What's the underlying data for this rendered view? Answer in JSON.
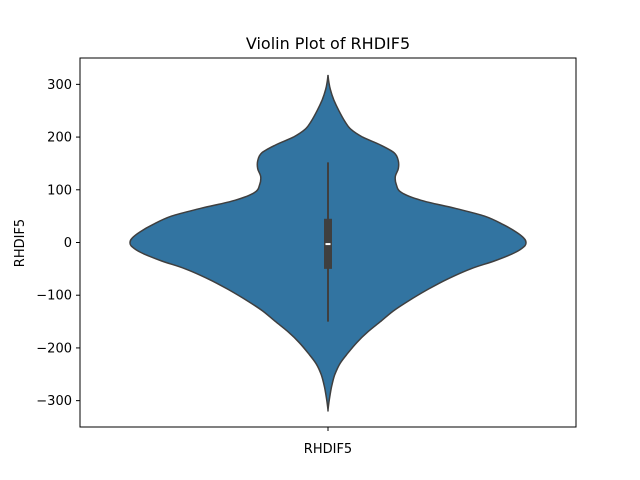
{
  "chart_data": {
    "type": "violin",
    "title": "Violin Plot of RHDIF5",
    "xlabel": "",
    "ylabel": "RHDIF5",
    "categories": [
      "RHDIF5"
    ],
    "ylim": [
      -350,
      350
    ],
    "yticks": [
      -300,
      -200,
      -100,
      0,
      100,
      200,
      300
    ],
    "ytick_labels": [
      "−300",
      "−200",
      "−100",
      "0",
      "100",
      "200",
      "300"
    ],
    "grid": false,
    "colors": {
      "body": "#3274a1",
      "edge": "#3f3f3f",
      "box": "#3f3f3f",
      "median": "#ffffff"
    },
    "violin": {
      "min": -318,
      "max": 318,
      "profile": [
        [
          318,
          0.0
        ],
        [
          305,
          0.004
        ],
        [
          290,
          0.012
        ],
        [
          270,
          0.03
        ],
        [
          250,
          0.055
        ],
        [
          230,
          0.085
        ],
        [
          215,
          0.115
        ],
        [
          200,
          0.175
        ],
        [
          185,
          0.265
        ],
        [
          170,
          0.335
        ],
        [
          155,
          0.355
        ],
        [
          140,
          0.355
        ],
        [
          125,
          0.34
        ],
        [
          110,
          0.345
        ],
        [
          95,
          0.37
        ],
        [
          80,
          0.47
        ],
        [
          65,
          0.64
        ],
        [
          50,
          0.79
        ],
        [
          35,
          0.88
        ],
        [
          20,
          0.95
        ],
        [
          8,
          0.99
        ],
        [
          0,
          1.0
        ],
        [
          -8,
          0.99
        ],
        [
          -20,
          0.94
        ],
        [
          -35,
          0.84
        ],
        [
          -50,
          0.72
        ],
        [
          -70,
          0.6
        ],
        [
          -90,
          0.5
        ],
        [
          -110,
          0.41
        ],
        [
          -130,
          0.33
        ],
        [
          -150,
          0.265
        ],
        [
          -170,
          0.2
        ],
        [
          -190,
          0.145
        ],
        [
          -210,
          0.1
        ],
        [
          -230,
          0.06
        ],
        [
          -250,
          0.035
        ],
        [
          -270,
          0.02
        ],
        [
          -290,
          0.01
        ],
        [
          -305,
          0.004
        ],
        [
          -318,
          0.0
        ]
      ]
    },
    "box": {
      "whisker_low": -150,
      "q1": -50,
      "median": -3,
      "q3": 45,
      "whisker_high": 152
    }
  }
}
